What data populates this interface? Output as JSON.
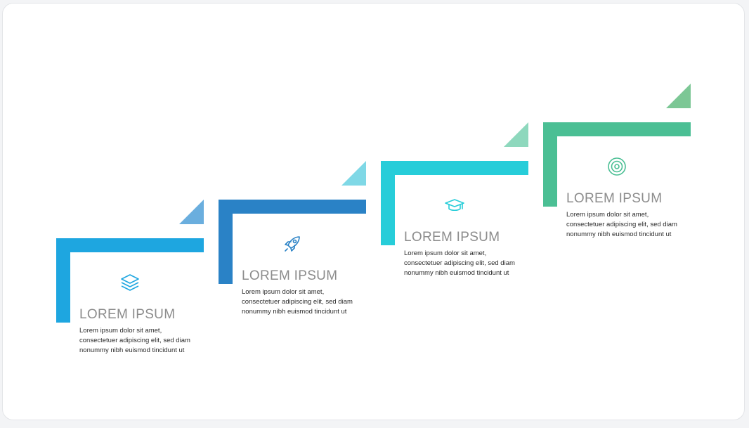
{
  "steps": [
    {
      "title": "LOREM IPSUM",
      "lines": [
        "Lorem ipsum dolor sit amet,",
        "consectetuer adipiscing elit, sed diam",
        "nonummy nibh euismod tincidunt ut"
      ],
      "icon": "layers-icon",
      "color": "#1ea6e0",
      "corner_color": "#6aaede"
    },
    {
      "title": "LOREM IPSUM",
      "lines": [
        "Lorem ipsum dolor sit amet,",
        "consectetuer adipiscing elit, sed diam",
        "nonummy nibh euismod tincidunt ut"
      ],
      "icon": "rocket-icon",
      "color": "#2a82c6",
      "corner_color": "#7fd8e6"
    },
    {
      "title": "LOREM IPSUM",
      "lines": [
        "Lorem ipsum dolor sit amet,",
        "consectetuer adipiscing elit, sed diam",
        "nonummy nibh euismod tincidunt ut"
      ],
      "icon": "graduation-cap-icon",
      "color": "#27cdd9",
      "corner_color": "#8ed8bd"
    },
    {
      "title": "LOREM IPSUM",
      "lines": [
        "Lorem ipsum dolor sit amet,",
        "consectetuer adipiscing elit, sed diam",
        "nonummy nibh euismod tincidunt ut"
      ],
      "icon": "target-icon",
      "color": "#4bbf94",
      "corner_color": "#7cc795"
    }
  ]
}
